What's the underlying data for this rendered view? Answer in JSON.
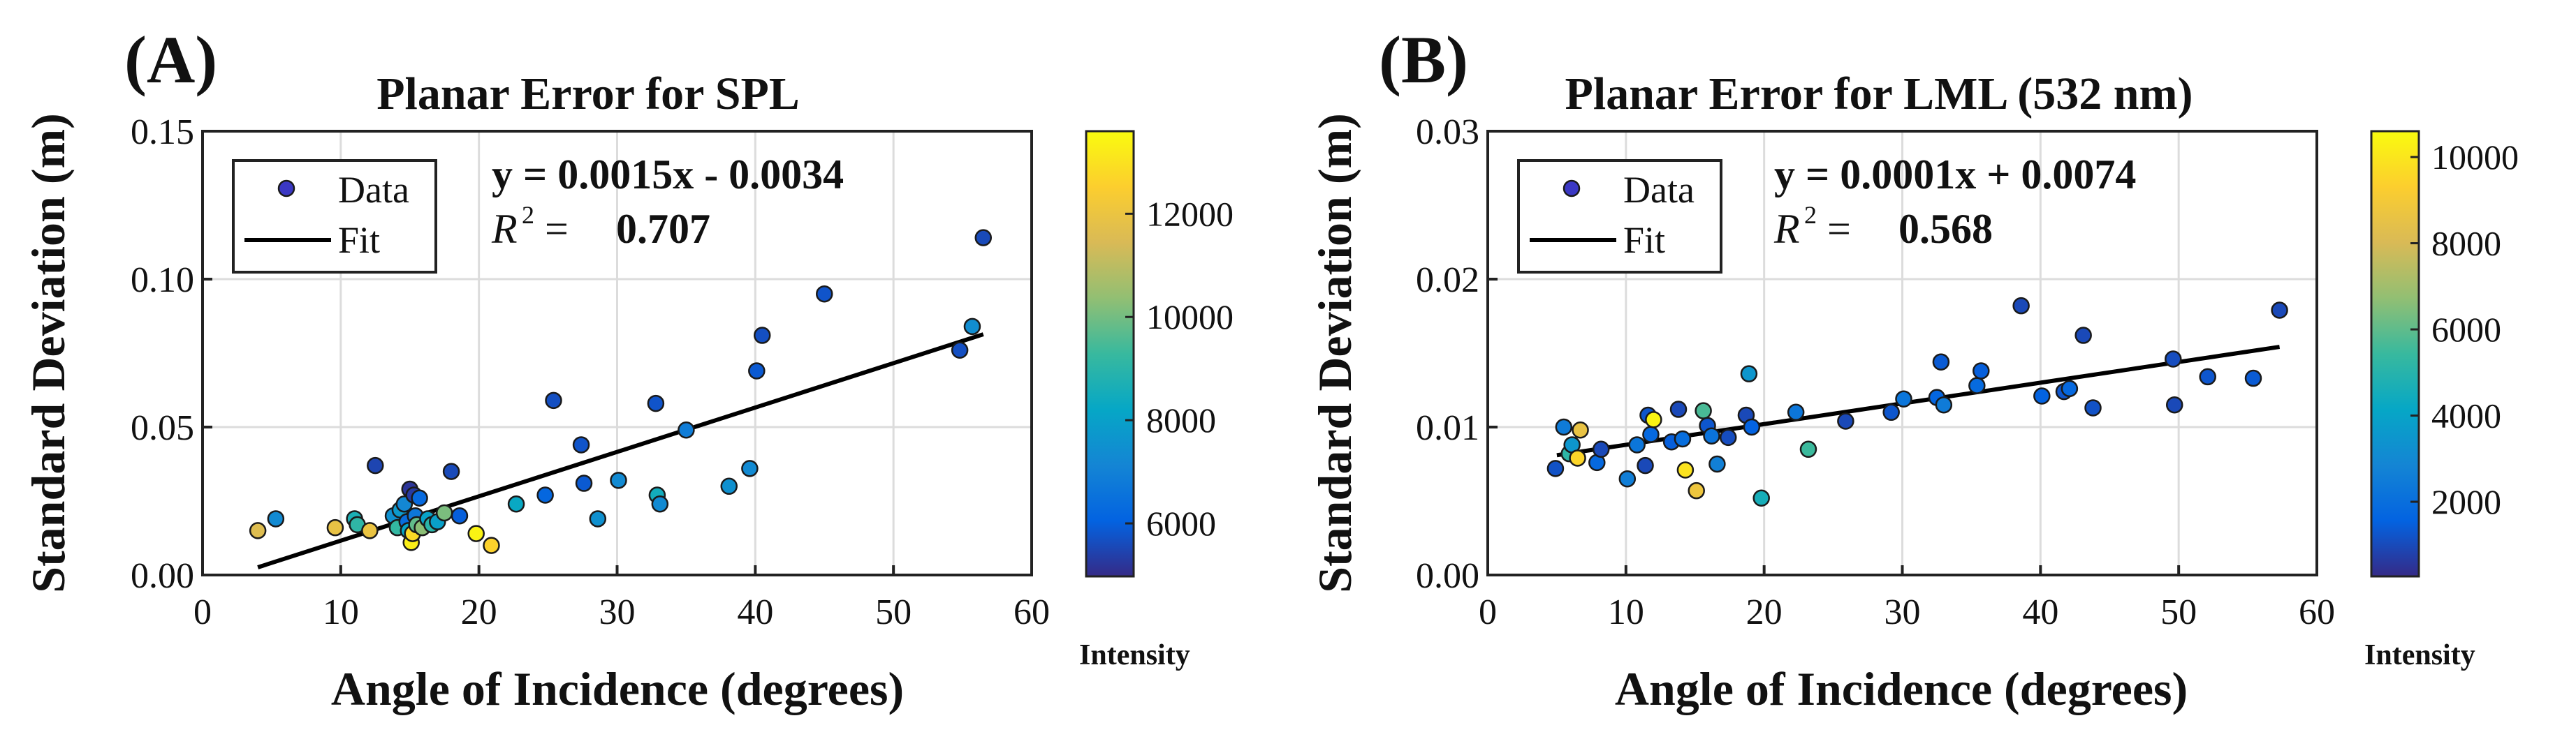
{
  "chart_data": [
    {
      "type": "scatter",
      "panel_label": "(A)",
      "title": "Planar Error for SPL",
      "xlabel": "Angle of Incidence (degrees)",
      "ylabel": "Standard Deviation (m)",
      "xlim": [
        0,
        60
      ],
      "ylim": [
        0,
        0.15
      ],
      "xticks": [
        "0",
        "10",
        "20",
        "30",
        "40",
        "50",
        "60"
      ],
      "yticks": [
        "0.00",
        "0.05",
        "0.10",
        "0.15"
      ],
      "grid": true,
      "legend": {
        "placement": "top-left",
        "data_label": "Data",
        "fit_label": "Fit"
      },
      "equation": "y = 0.0015x - 0.0034",
      "r2_prefix": "= ",
      "r2_value": "0.707",
      "fit": {
        "slope": 0.0015,
        "intercept": -0.0034,
        "x_range": [
          4,
          56.5
        ]
      },
      "colorbar": {
        "label": "Intensity",
        "min": 5000,
        "max": 13600,
        "ticks": [
          "6000",
          "8000",
          "10000",
          "12000"
        ]
      },
      "points": [
        {
          "x": 4.0,
          "y": 0.015,
          "c": 11600
        },
        {
          "x": 5.3,
          "y": 0.019,
          "c": 7300
        },
        {
          "x": 9.6,
          "y": 0.016,
          "c": 11900
        },
        {
          "x": 11.0,
          "y": 0.019,
          "c": 8700
        },
        {
          "x": 11.2,
          "y": 0.017,
          "c": 9100
        },
        {
          "x": 12.1,
          "y": 0.015,
          "c": 12000
        },
        {
          "x": 12.5,
          "y": 0.037,
          "c": 5500
        },
        {
          "x": 13.8,
          "y": 0.02,
          "c": 7500
        },
        {
          "x": 14.1,
          "y": 0.016,
          "c": 9200
        },
        {
          "x": 14.3,
          "y": 0.022,
          "c": 7800
        },
        {
          "x": 14.6,
          "y": 0.024,
          "c": 7200
        },
        {
          "x": 14.8,
          "y": 0.018,
          "c": 6400
        },
        {
          "x": 14.9,
          "y": 0.015,
          "c": 8200
        },
        {
          "x": 15.0,
          "y": 0.029,
          "c": 5200
        },
        {
          "x": 15.1,
          "y": 0.011,
          "c": 13300
        },
        {
          "x": 15.2,
          "y": 0.014,
          "c": 12800
        },
        {
          "x": 15.3,
          "y": 0.027,
          "c": 5300
        },
        {
          "x": 15.4,
          "y": 0.02,
          "c": 6700
        },
        {
          "x": 15.5,
          "y": 0.017,
          "c": 9800
        },
        {
          "x": 15.7,
          "y": 0.026,
          "c": 6300
        },
        {
          "x": 15.9,
          "y": 0.016,
          "c": 10300
        },
        {
          "x": 16.3,
          "y": 0.019,
          "c": 8100
        },
        {
          "x": 16.6,
          "y": 0.017,
          "c": 9000
        },
        {
          "x": 17.0,
          "y": 0.018,
          "c": 8000
        },
        {
          "x": 17.5,
          "y": 0.021,
          "c": 10100
        },
        {
          "x": 18.0,
          "y": 0.035,
          "c": 5600
        },
        {
          "x": 18.6,
          "y": 0.02,
          "c": 6000
        },
        {
          "x": 19.8,
          "y": 0.014,
          "c": 13400
        },
        {
          "x": 20.9,
          "y": 0.01,
          "c": 12600
        },
        {
          "x": 22.7,
          "y": 0.024,
          "c": 8300
        },
        {
          "x": 24.8,
          "y": 0.027,
          "c": 6200
        },
        {
          "x": 25.4,
          "y": 0.059,
          "c": 5700
        },
        {
          "x": 27.4,
          "y": 0.044,
          "c": 5800
        },
        {
          "x": 27.6,
          "y": 0.031,
          "c": 5900
        },
        {
          "x": 28.6,
          "y": 0.019,
          "c": 7500
        },
        {
          "x": 30.1,
          "y": 0.032,
          "c": 7300
        },
        {
          "x": 32.8,
          "y": 0.058,
          "c": 5800
        },
        {
          "x": 32.9,
          "y": 0.027,
          "c": 8500
        },
        {
          "x": 33.1,
          "y": 0.024,
          "c": 7300
        },
        {
          "x": 35.0,
          "y": 0.049,
          "c": 6900
        },
        {
          "x": 38.1,
          "y": 0.03,
          "c": 7500
        },
        {
          "x": 39.6,
          "y": 0.036,
          "c": 7300
        },
        {
          "x": 40.1,
          "y": 0.069,
          "c": 5900
        },
        {
          "x": 40.5,
          "y": 0.081,
          "c": 5700
        },
        {
          "x": 45.0,
          "y": 0.095,
          "c": 5800
        },
        {
          "x": 54.8,
          "y": 0.076,
          "c": 5700
        },
        {
          "x": 55.7,
          "y": 0.084,
          "c": 7400
        },
        {
          "x": 56.5,
          "y": 0.114,
          "c": 5600
        }
      ]
    },
    {
      "type": "scatter",
      "panel_label": "(B)",
      "title": "Planar Error for LML (532 nm)",
      "xlabel": "Angle of Incidence (degrees)",
      "ylabel": "Standard Deviation (m)",
      "xlim": [
        0,
        60
      ],
      "ylim": [
        0,
        0.03
      ],
      "xticks": [
        "0",
        "10",
        "20",
        "30",
        "40",
        "50",
        "60"
      ],
      "yticks": [
        "0.00",
        "0.01",
        "0.02",
        "0.03"
      ],
      "grid": true,
      "legend": {
        "placement": "top-left",
        "data_label": "Data",
        "fit_label": "Fit"
      },
      "equation": "y = 0.0001x + 0.0074",
      "r2_prefix": "= ",
      "r2_value": "0.568",
      "fit": {
        "slope": 0.00014,
        "intercept": 0.0074,
        "x_range": [
          5,
          57.3
        ]
      },
      "colorbar": {
        "label": "Intensity",
        "min": 300,
        "max": 10600,
        "ticks": [
          "2000",
          "4000",
          "6000",
          "8000",
          "10000"
        ]
      },
      "points": [
        {
          "x": 4.9,
          "y": 0.0072,
          "c": 1200
        },
        {
          "x": 5.5,
          "y": 0.01,
          "c": 2500
        },
        {
          "x": 5.9,
          "y": 0.0082,
          "c": 5200
        },
        {
          "x": 6.1,
          "y": 0.0088,
          "c": 3500
        },
        {
          "x": 6.5,
          "y": 0.0079,
          "c": 9500
        },
        {
          "x": 6.7,
          "y": 0.0098,
          "c": 8600
        },
        {
          "x": 7.9,
          "y": 0.0076,
          "c": 1800
        },
        {
          "x": 8.2,
          "y": 0.0085,
          "c": 1000
        },
        {
          "x": 10.1,
          "y": 0.0065,
          "c": 2600
        },
        {
          "x": 10.8,
          "y": 0.0088,
          "c": 2300
        },
        {
          "x": 11.4,
          "y": 0.0074,
          "c": 1000
        },
        {
          "x": 11.6,
          "y": 0.0108,
          "c": 1300
        },
        {
          "x": 11.8,
          "y": 0.0095,
          "c": 1800
        },
        {
          "x": 12.0,
          "y": 0.0105,
          "c": 10400
        },
        {
          "x": 13.3,
          "y": 0.009,
          "c": 1500
        },
        {
          "x": 13.8,
          "y": 0.0112,
          "c": 1000
        },
        {
          "x": 14.1,
          "y": 0.0092,
          "c": 2000
        },
        {
          "x": 14.3,
          "y": 0.0071,
          "c": 9900
        },
        {
          "x": 15.1,
          "y": 0.0057,
          "c": 8800
        },
        {
          "x": 15.6,
          "y": 0.0111,
          "c": 5700
        },
        {
          "x": 15.9,
          "y": 0.0101,
          "c": 1300
        },
        {
          "x": 16.2,
          "y": 0.0094,
          "c": 2200
        },
        {
          "x": 16.6,
          "y": 0.0075,
          "c": 2700
        },
        {
          "x": 17.4,
          "y": 0.0093,
          "c": 1100
        },
        {
          "x": 18.7,
          "y": 0.0108,
          "c": 1000
        },
        {
          "x": 18.9,
          "y": 0.0136,
          "c": 3500
        },
        {
          "x": 19.1,
          "y": 0.01,
          "c": 1600
        },
        {
          "x": 19.8,
          "y": 0.0052,
          "c": 4600
        },
        {
          "x": 22.3,
          "y": 0.011,
          "c": 2300
        },
        {
          "x": 23.2,
          "y": 0.0085,
          "c": 5500
        },
        {
          "x": 25.9,
          "y": 0.0104,
          "c": 1000
        },
        {
          "x": 29.2,
          "y": 0.011,
          "c": 1300
        },
        {
          "x": 30.1,
          "y": 0.0119,
          "c": 2300
        },
        {
          "x": 32.5,
          "y": 0.012,
          "c": 1700
        },
        {
          "x": 32.8,
          "y": 0.0144,
          "c": 1400
        },
        {
          "x": 33.0,
          "y": 0.0115,
          "c": 2500
        },
        {
          "x": 35.4,
          "y": 0.0128,
          "c": 1900
        },
        {
          "x": 35.7,
          "y": 0.0138,
          "c": 1500
        },
        {
          "x": 38.6,
          "y": 0.0182,
          "c": 1000
        },
        {
          "x": 40.1,
          "y": 0.0121,
          "c": 1600
        },
        {
          "x": 41.7,
          "y": 0.0124,
          "c": 1300
        },
        {
          "x": 42.1,
          "y": 0.0126,
          "c": 1800
        },
        {
          "x": 43.1,
          "y": 0.0162,
          "c": 1000
        },
        {
          "x": 43.8,
          "y": 0.0113,
          "c": 1200
        },
        {
          "x": 49.6,
          "y": 0.0146,
          "c": 1100
        },
        {
          "x": 49.7,
          "y": 0.0115,
          "c": 1000
        },
        {
          "x": 52.1,
          "y": 0.0134,
          "c": 1300
        },
        {
          "x": 55.4,
          "y": 0.0133,
          "c": 1400
        },
        {
          "x": 57.3,
          "y": 0.0179,
          "c": 1000
        }
      ]
    }
  ]
}
